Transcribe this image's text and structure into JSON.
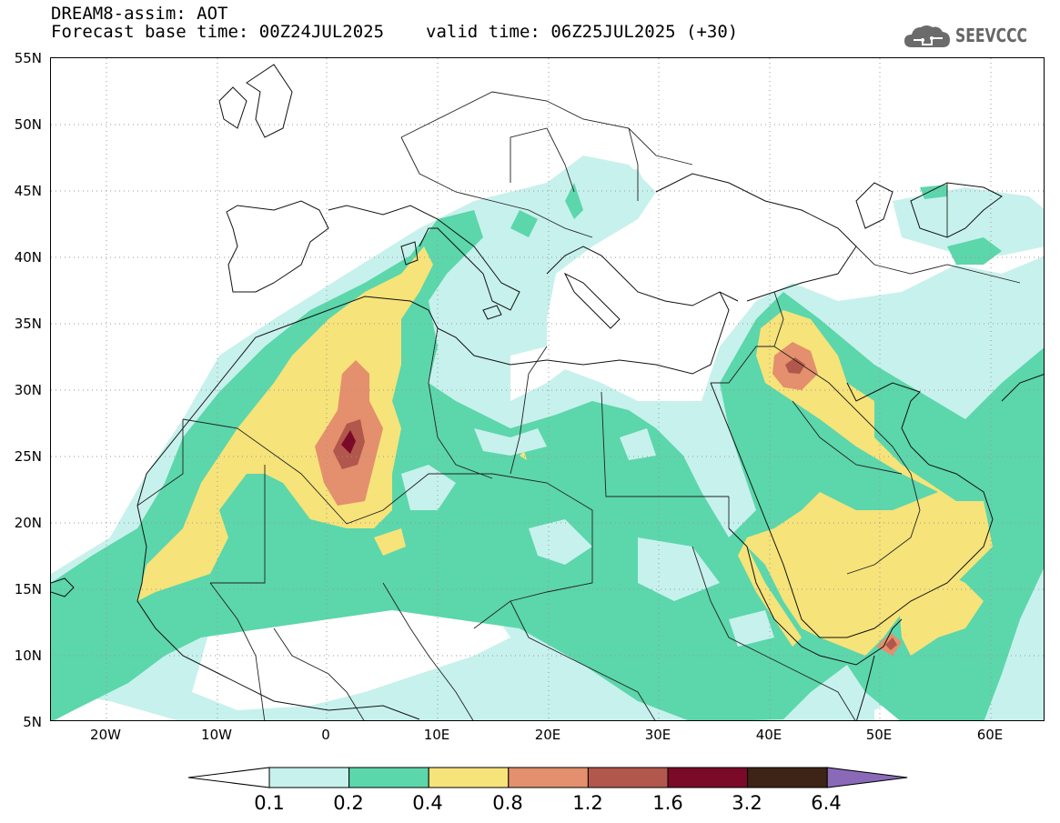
{
  "header": {
    "title_line1": "DREAM8-assim: AOT",
    "title_line2_base": "Forecast base time: 00Z24JUL2025",
    "title_line2_valid": "valid time: 06Z25JUL2025 (+30)"
  },
  "logo": {
    "text": "SEEVCCC",
    "icon": "cloud-icon"
  },
  "map": {
    "lat_labels": [
      "55N",
      "50N",
      "45N",
      "40N",
      "35N",
      "30N",
      "25N",
      "20N",
      "15N",
      "10N",
      "5N"
    ],
    "lon_labels": [
      "20W",
      "10W",
      "0",
      "10E",
      "20E",
      "30E",
      "40E",
      "50E",
      "60E"
    ],
    "lon_range": [
      -25,
      65
    ],
    "lat_range": [
      5,
      55
    ],
    "gridlines": "dotted"
  },
  "colorbar": {
    "labels": [
      "0.1",
      "0.2",
      "0.4",
      "0.8",
      "1.2",
      "1.6",
      "3.2",
      "6.4"
    ],
    "colors": [
      "#ffffff",
      "#c7f1ec",
      "#5cd6ab",
      "#f6e37a",
      "#e48f6d",
      "#b2574c",
      "#7a0a27",
      "#3d2416",
      "#8a6ab8"
    ]
  }
}
